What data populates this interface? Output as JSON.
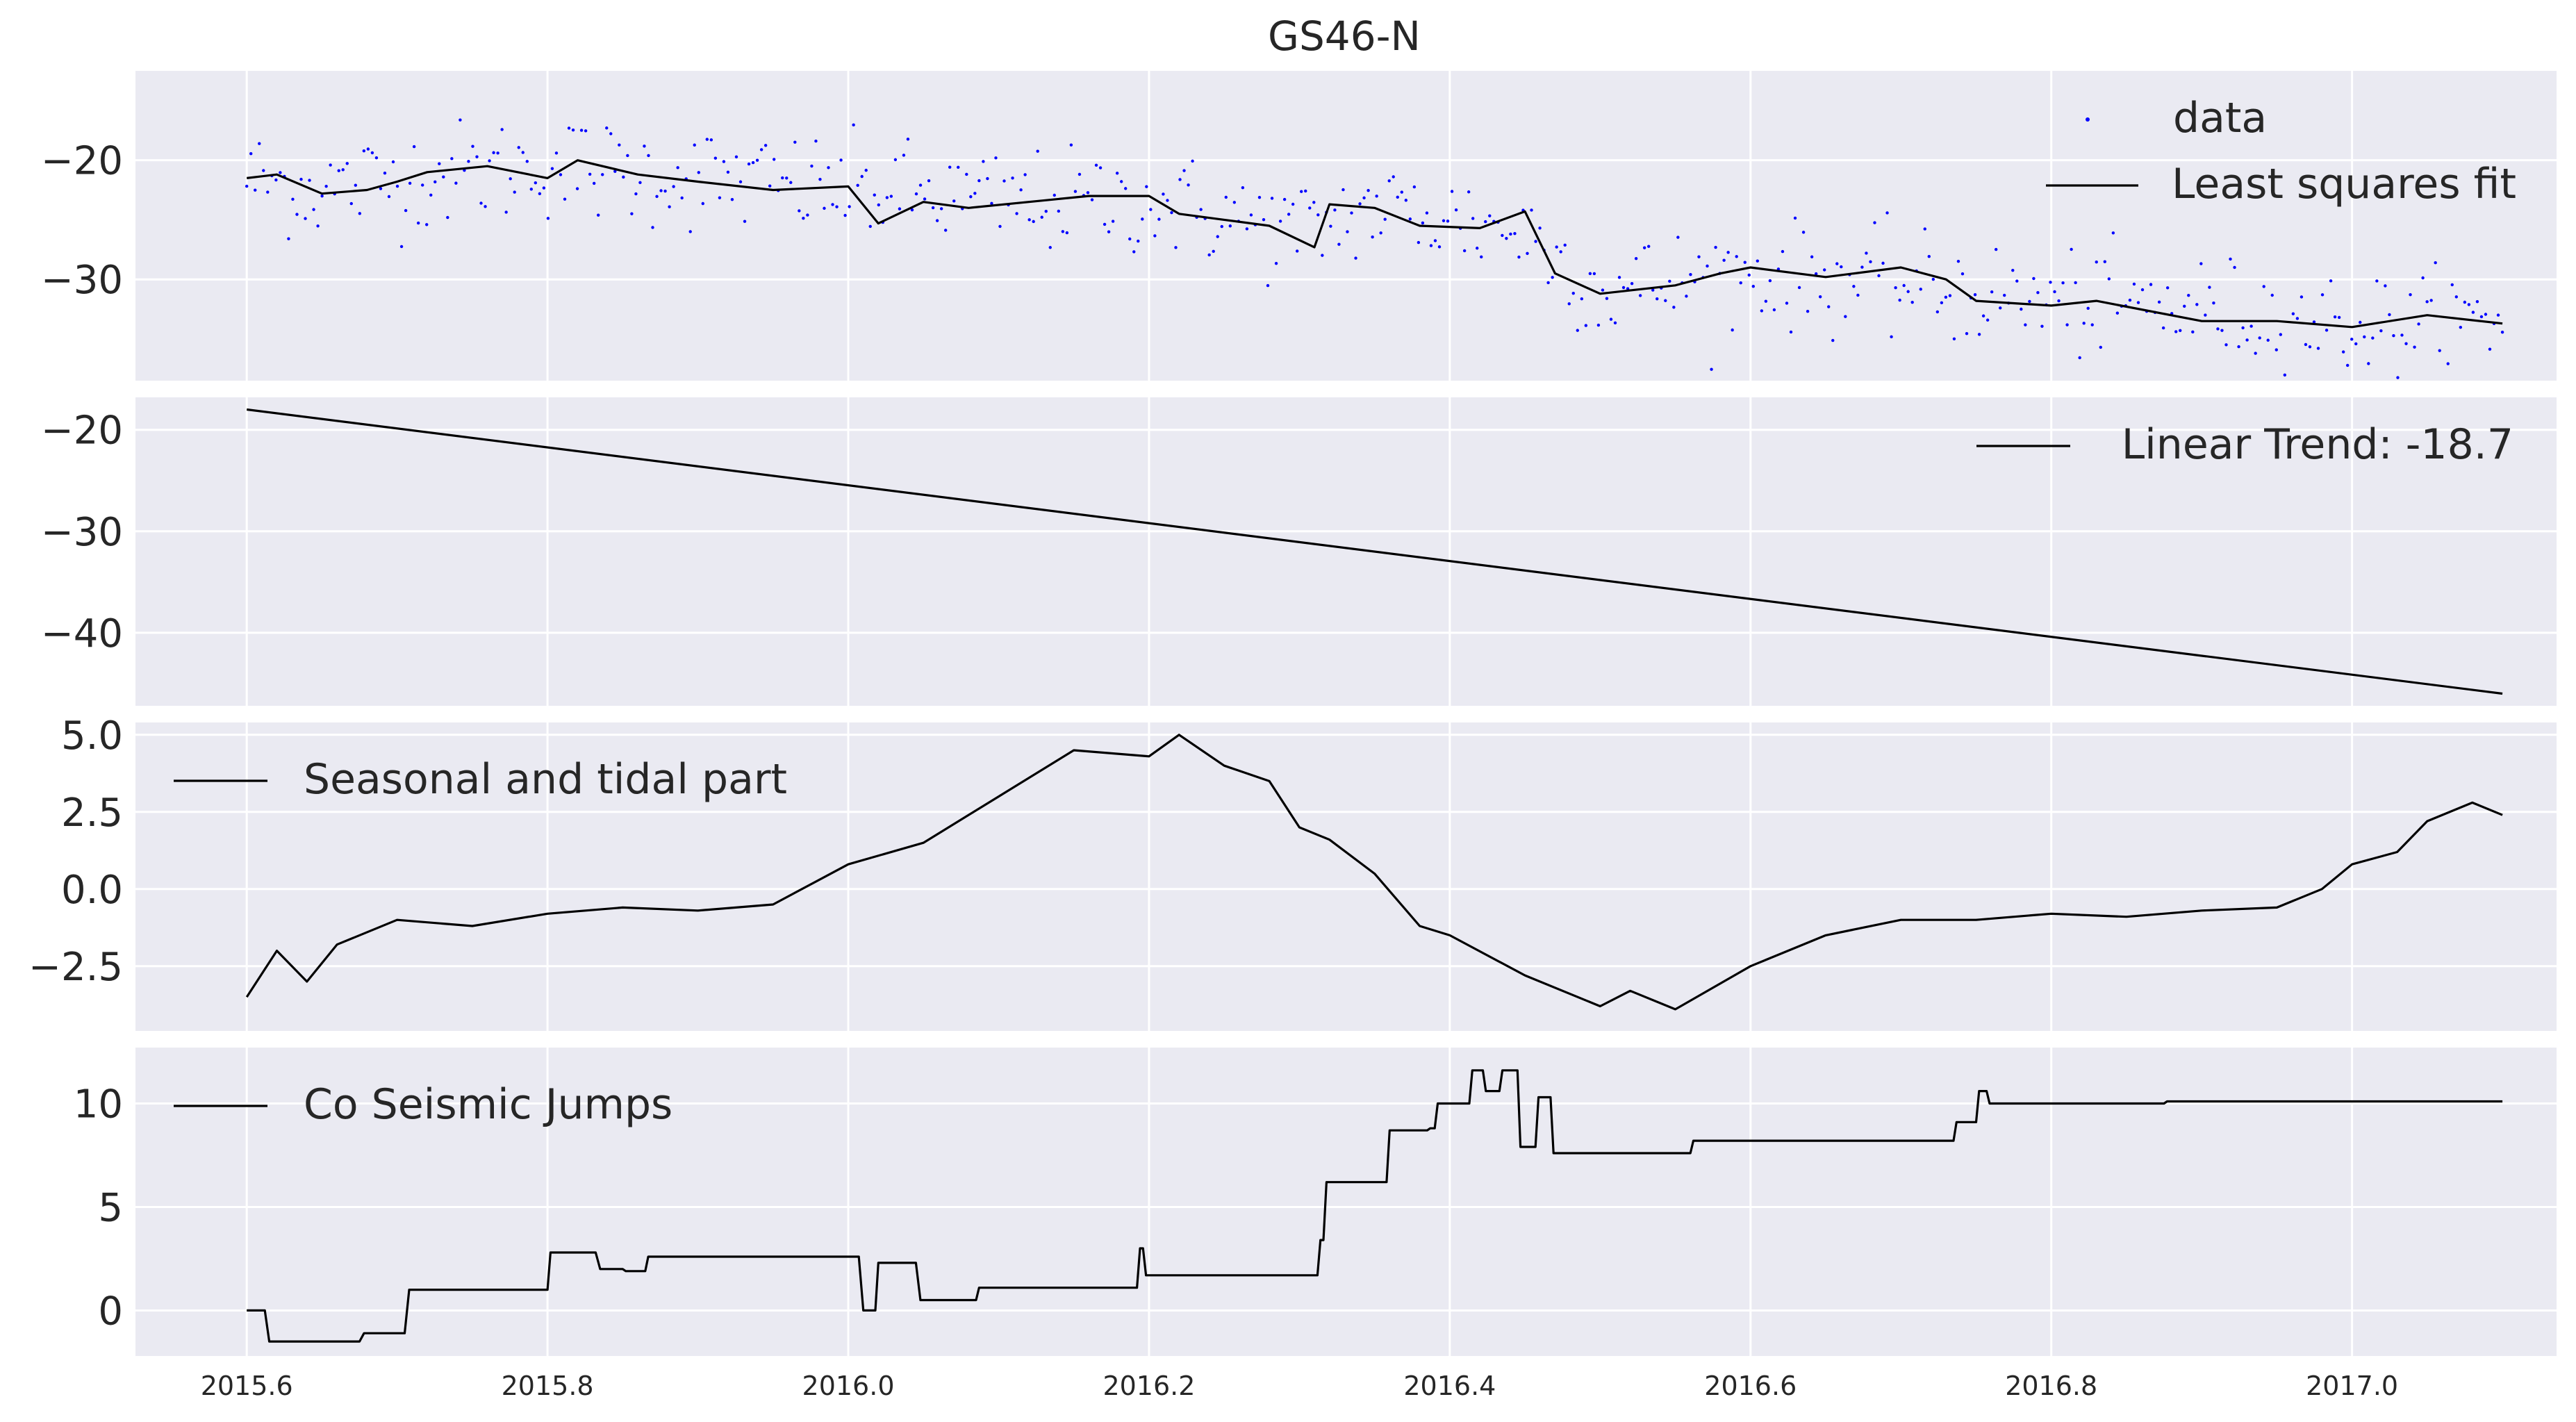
{
  "figure_title": "GS46-N",
  "x_tick_labels": [
    "2015.6",
    "2015.8",
    "2016.0",
    "2016.2",
    "2016.4",
    "2016.6",
    "2016.8",
    "2017.0"
  ],
  "chart_data": [
    {
      "type": "scatter",
      "title": "GS46-N",
      "xlabel": "",
      "ylabel": "",
      "xlim": [
        2015.526,
        2017.136
      ],
      "ylim": [
        -38.5,
        -12.5
      ],
      "xticks": [
        2015.6,
        2015.8,
        2016.0,
        2016.2,
        2016.4,
        2016.6,
        2016.8,
        2017.0
      ],
      "yticks": [
        -20,
        -30
      ],
      "ytick_labels": [
        "−20",
        "−30"
      ],
      "grid": true,
      "legend_position": "top-right",
      "series": [
        {
          "name": "data",
          "mark": "points",
          "color": "#0000ff",
          "trend_x": [
            2015.6,
            2015.65,
            2015.7,
            2015.8,
            2015.9,
            2016.0,
            2016.1,
            2016.2,
            2016.3,
            2016.35,
            2016.45,
            2016.5,
            2016.6,
            2016.7,
            2016.8,
            2016.9,
            2017.0,
            2017.1
          ],
          "trend_y": [
            -21.5,
            -22.5,
            -21.5,
            -20.5,
            -21.5,
            -22.5,
            -23.5,
            -23.5,
            -26,
            -24,
            -26,
            -31,
            -29.5,
            -30.5,
            -32,
            -32.5,
            -34,
            -33.5
          ],
          "scatter_spread": 2.2,
          "n_points": 540
        },
        {
          "name": "Least squares fit",
          "mark": "line",
          "color": "#000000",
          "x": [
            2015.6,
            2015.62,
            2015.65,
            2015.68,
            2015.7,
            2015.72,
            2015.76,
            2015.8,
            2015.82,
            2015.86,
            2015.9,
            2015.95,
            2016.0,
            2016.02,
            2016.05,
            2016.08,
            2016.12,
            2016.16,
            2016.2,
            2016.22,
            2016.25,
            2016.28,
            2016.31,
            2016.32,
            2016.35,
            2016.38,
            2016.42,
            2016.45,
            2016.47,
            2016.5,
            2016.55,
            2016.58,
            2016.6,
            2016.65,
            2016.7,
            2016.73,
            2016.75,
            2016.8,
            2016.83,
            2016.9,
            2016.95,
            2017.0,
            2017.05,
            2017.1
          ],
          "y": [
            -21.5,
            -21.2,
            -22.8,
            -22.5,
            -21.8,
            -21.0,
            -20.5,
            -21.5,
            -20.0,
            -21.2,
            -21.8,
            -22.5,
            -22.2,
            -25.3,
            -23.5,
            -24.0,
            -23.5,
            -23.0,
            -23.0,
            -24.5,
            -25.0,
            -25.5,
            -27.3,
            -23.7,
            -24.0,
            -25.5,
            -25.7,
            -24.3,
            -29.5,
            -31.2,
            -30.5,
            -29.5,
            -29.0,
            -29.8,
            -29.0,
            -30.0,
            -31.8,
            -32.2,
            -31.8,
            -33.5,
            -33.5,
            -34.0,
            -33.0,
            -33.7
          ]
        }
      ]
    },
    {
      "type": "line",
      "title": "",
      "xlabel": "",
      "ylabel": "",
      "xlim": [
        2015.526,
        2017.136
      ],
      "ylim": [
        -47.2,
        -16.8
      ],
      "xticks": [
        2015.6,
        2015.8,
        2016.0,
        2016.2,
        2016.4,
        2016.6,
        2016.8,
        2017.0
      ],
      "yticks": [
        -20,
        -30,
        -40
      ],
      "ytick_labels": [
        "−20",
        "−30",
        "−40"
      ],
      "grid": true,
      "legend_position": "top-right",
      "series": [
        {
          "name": "Linear Trend: -18.7",
          "color": "#000000",
          "x": [
            2015.6,
            2017.1
          ],
          "y": [
            -18.0,
            -46.0
          ]
        }
      ]
    },
    {
      "type": "line",
      "title": "",
      "xlabel": "",
      "ylabel": "",
      "xlim": [
        2015.526,
        2017.136
      ],
      "ylim": [
        -4.6,
        5.4
      ],
      "xticks": [
        2015.6,
        2015.8,
        2016.0,
        2016.2,
        2016.4,
        2016.6,
        2016.8,
        2017.0
      ],
      "yticks": [
        5.0,
        2.5,
        0.0,
        -2.5
      ],
      "ytick_labels": [
        "5.0",
        "2.5",
        "0.0",
        "−2.5"
      ],
      "grid": true,
      "legend_position": "top-left",
      "series": [
        {
          "name": "Seasonal and tidal part",
          "color": "#000000",
          "x": [
            2015.6,
            2015.62,
            2015.64,
            2015.66,
            2015.7,
            2015.75,
            2015.8,
            2015.85,
            2015.9,
            2015.95,
            2016.0,
            2016.05,
            2016.1,
            2016.15,
            2016.2,
            2016.22,
            2016.25,
            2016.28,
            2016.3,
            2016.32,
            2016.35,
            2016.38,
            2016.4,
            2016.45,
            2016.5,
            2016.52,
            2016.55,
            2016.6,
            2016.65,
            2016.7,
            2016.75,
            2016.8,
            2016.85,
            2016.9,
            2016.95,
            2016.98,
            2017.0,
            2017.03,
            2017.05,
            2017.08,
            2017.1
          ],
          "y": [
            -3.5,
            -2.0,
            -3.0,
            -1.8,
            -1.0,
            -1.2,
            -0.8,
            -0.6,
            -0.7,
            -0.5,
            0.8,
            1.5,
            3.0,
            4.5,
            4.3,
            5.0,
            4.0,
            3.5,
            2.0,
            1.6,
            0.5,
            -1.2,
            -1.5,
            -2.8,
            -3.8,
            -3.3,
            -3.9,
            -2.5,
            -1.5,
            -1.0,
            -1.0,
            -0.8,
            -0.9,
            -0.7,
            -0.6,
            0.0,
            0.8,
            1.2,
            2.2,
            2.8,
            2.4
          ]
        }
      ]
    },
    {
      "type": "line",
      "title": "",
      "xlabel": "",
      "ylabel": "",
      "xlim": [
        2015.526,
        2017.136
      ],
      "ylim": [
        -2.2,
        12.7
      ],
      "xticks": [
        2015.6,
        2015.8,
        2016.0,
        2016.2,
        2016.4,
        2016.6,
        2016.8,
        2017.0
      ],
      "yticks": [
        10,
        5,
        0
      ],
      "ytick_labels": [
        "10",
        "5",
        "0"
      ],
      "grid": true,
      "legend_position": "top-left",
      "series": [
        {
          "name": "Co Seismic Jumps",
          "color": "#000000",
          "step": true,
          "x": [
            2015.6,
            2015.612,
            2015.615,
            2015.675,
            2015.678,
            2015.705,
            2015.708,
            2015.8,
            2015.802,
            2015.832,
            2015.835,
            2015.85,
            2015.852,
            2015.865,
            2015.867,
            2016.007,
            2016.01,
            2016.018,
            2016.02,
            2016.045,
            2016.048,
            2016.085,
            2016.087,
            2016.192,
            2016.194,
            2016.196,
            2016.198,
            2016.312,
            2016.314,
            2016.316,
            2016.318,
            2016.358,
            2016.36,
            2016.385,
            2016.387,
            2016.39,
            2016.392,
            2016.413,
            2016.415,
            2016.422,
            2016.424,
            2016.433,
            2016.435,
            2016.445,
            2016.447,
            2016.457,
            2016.459,
            2016.467,
            2016.469,
            2016.56,
            2016.562,
            2016.735,
            2016.737,
            2016.75,
            2016.752,
            2016.757,
            2016.759,
            2016.812,
            2016.814,
            2016.875,
            2016.877,
            2017.1
          ],
          "y": [
            0,
            0,
            -1.5,
            -1.5,
            -1.1,
            -1.1,
            1.0,
            1.0,
            2.8,
            2.8,
            2.0,
            2.0,
            1.9,
            1.9,
            2.6,
            2.6,
            0.0,
            0.0,
            2.3,
            2.3,
            0.5,
            0.5,
            1.1,
            1.1,
            3.0,
            3.0,
            1.7,
            1.7,
            3.4,
            3.4,
            6.2,
            6.2,
            8.7,
            8.7,
            8.8,
            8.8,
            10.0,
            10.0,
            11.6,
            11.6,
            10.6,
            10.6,
            11.6,
            11.6,
            7.9,
            7.9,
            10.3,
            10.3,
            7.6,
            7.6,
            8.2,
            8.2,
            9.1,
            9.1,
            10.6,
            10.6,
            10.0,
            10.0,
            10.0,
            10.0,
            10.1,
            10.1
          ]
        }
      ]
    }
  ]
}
